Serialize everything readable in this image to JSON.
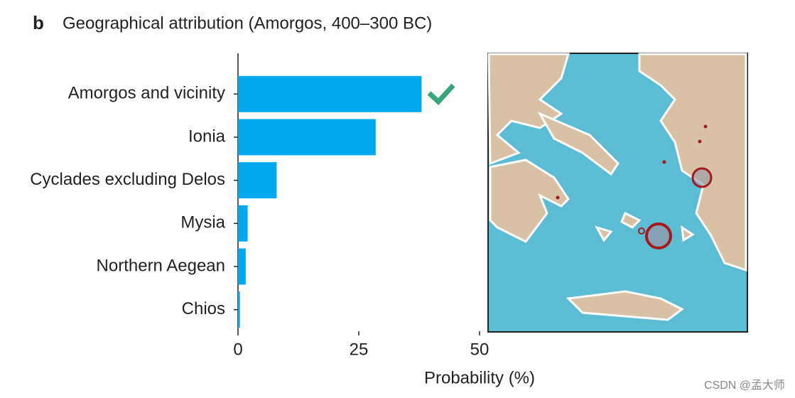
{
  "panel_label": "b",
  "chart_data": {
    "type": "barh",
    "title": "Geographical attribution (Amorgos, 400–300 BC)",
    "categories": [
      "Amorgos and vicinity",
      "Ionia",
      "Cyclades excluding Delos",
      "Mysia",
      "Northern Aegean",
      "Chios"
    ],
    "values": [
      38,
      28.5,
      8,
      2,
      1.6,
      0.4
    ],
    "color": "#02a9f1",
    "xlim": [
      0,
      50
    ],
    "xticks": [
      0,
      25,
      50
    ],
    "xlabel": "Probability (%)"
  },
  "watermark": "CSDN @孟大师"
}
